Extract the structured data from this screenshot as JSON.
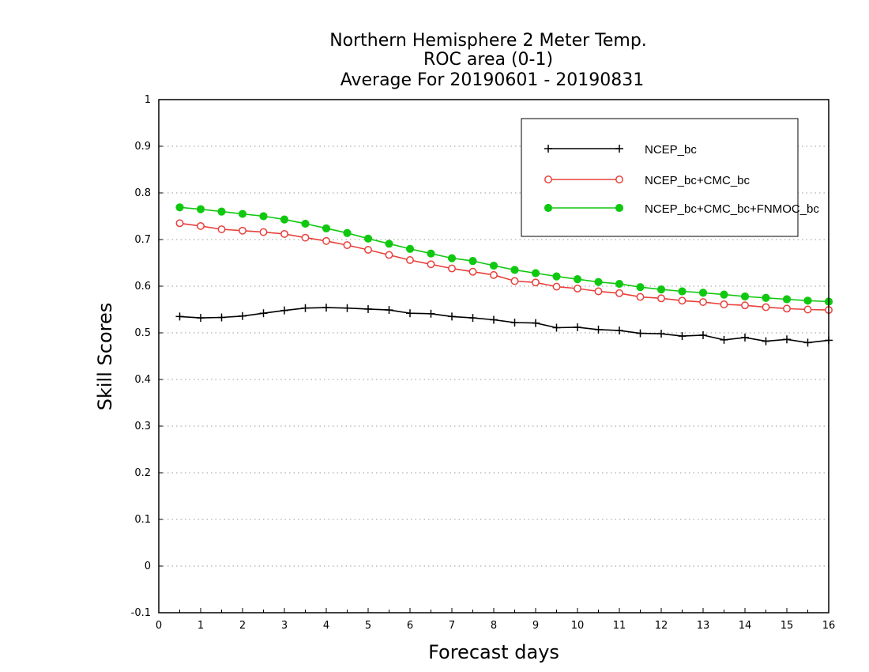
{
  "chart_data": {
    "type": "line",
    "title": [
      "Northern Hemisphere 2 Meter Temp.",
      "ROC area (0-1)",
      "Average For 20190601 - 20190831"
    ],
    "xlabel": "Forecast days",
    "ylabel": "Skill Scores",
    "xlim": [
      0,
      16
    ],
    "ylim": [
      -0.1,
      1
    ],
    "xticks": [
      0,
      1,
      2,
      3,
      4,
      5,
      6,
      7,
      8,
      9,
      10,
      11,
      12,
      13,
      14,
      15,
      16
    ],
    "yticks": [
      -0.1,
      0,
      0.1,
      0.2,
      0.3,
      0.4,
      0.5,
      0.6,
      0.7,
      0.8,
      0.9,
      1
    ],
    "ytick_labels": [
      "-0.1",
      "0",
      "0.1",
      "0.2",
      "0.3",
      "0.4",
      "0.5",
      "0.6",
      "0.7",
      "0.8",
      "0.9",
      "1"
    ],
    "grid": "horizontal dotted",
    "legend_position": "top-right",
    "x": [
      0.5,
      1,
      1.5,
      2,
      2.5,
      3,
      3.5,
      4,
      4.5,
      5,
      5.5,
      6,
      6.5,
      7,
      7.5,
      8,
      8.5,
      9,
      9.5,
      10,
      10.5,
      11,
      11.5,
      12,
      12.5,
      13,
      13.5,
      14,
      14.5,
      15,
      15.5,
      16
    ],
    "series": [
      {
        "name": "NCEP_bc",
        "color": "#000000",
        "marker": "plus",
        "values": [
          0.535,
          0.532,
          0.533,
          0.536,
          0.542,
          0.548,
          0.553,
          0.554,
          0.553,
          0.551,
          0.549,
          0.542,
          0.541,
          0.535,
          0.532,
          0.528,
          0.522,
          0.521,
          0.511,
          0.512,
          0.507,
          0.505,
          0.499,
          0.498,
          0.493,
          0.495,
          0.485,
          0.49,
          0.482,
          0.486,
          0.479,
          0.484
        ]
      },
      {
        "name": "NCEP_bc+CMC_bc",
        "color": "#e8403c",
        "marker": "open-circle",
        "values": [
          0.735,
          0.729,
          0.722,
          0.719,
          0.716,
          0.712,
          0.704,
          0.697,
          0.688,
          0.678,
          0.667,
          0.656,
          0.647,
          0.638,
          0.631,
          0.624,
          0.611,
          0.608,
          0.599,
          0.595,
          0.589,
          0.585,
          0.577,
          0.574,
          0.569,
          0.566,
          0.561,
          0.559,
          0.555,
          0.552,
          0.55,
          0.549
        ]
      },
      {
        "name": "NCEP_bc+CMC_bc+FNMOC_bc",
        "color": "#11c811",
        "marker": "filled-circle",
        "values": [
          0.769,
          0.765,
          0.76,
          0.755,
          0.75,
          0.743,
          0.734,
          0.724,
          0.714,
          0.702,
          0.691,
          0.68,
          0.67,
          0.66,
          0.654,
          0.644,
          0.635,
          0.628,
          0.621,
          0.615,
          0.609,
          0.605,
          0.598,
          0.593,
          0.589,
          0.586,
          0.582,
          0.578,
          0.575,
          0.572,
          0.569,
          0.567
        ]
      }
    ]
  }
}
